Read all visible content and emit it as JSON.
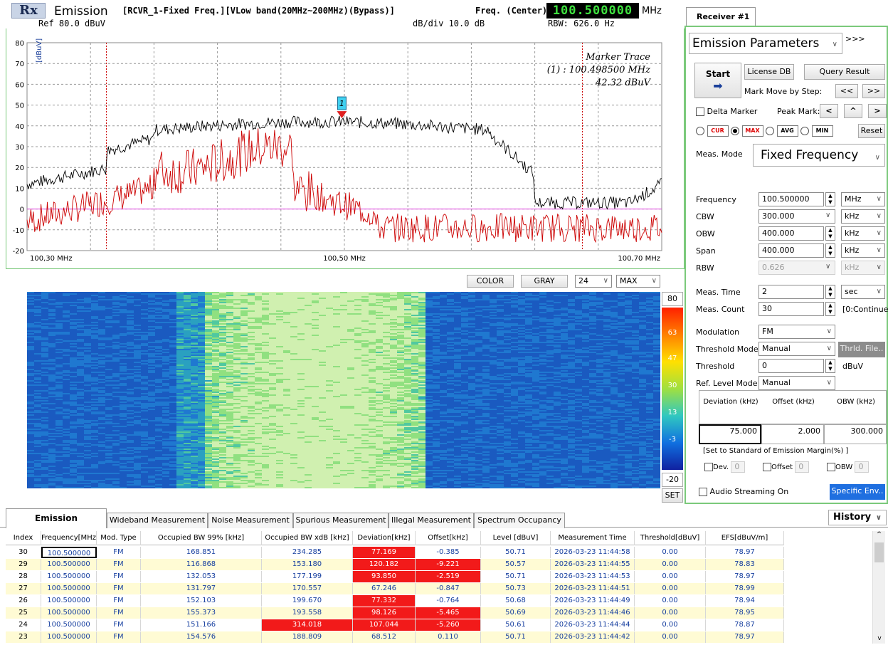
{
  "header": {
    "rx": "Rx",
    "mode": "Emission",
    "receiver_info": "[RCVR_1-Fixed Freq.][VLow band(20MHz~200MHz)(Bypass)]",
    "freq_center_label": "Freq. (Center)",
    "freq_center_value": "100.500000",
    "freq_unit": "MHz",
    "ref": "Ref 80.0 dBuV",
    "dbdiv": "dB/div 10.0 dB",
    "rbw": "RBW: 626.0 Hz"
  },
  "spectrum": {
    "ylabel": "[dBuV]",
    "yticks": [
      "80",
      "70",
      "60",
      "50",
      "40",
      "30",
      "20",
      "10",
      "0",
      "-10",
      "-20"
    ],
    "xticks": [
      "100,30 MHz",
      "100,50 MHz",
      "100,70 MHz"
    ],
    "marker_title": "Marker Trace",
    "marker_freq": "(1) : 100.498500 MHz",
    "marker_level": "42.32 dBuV",
    "marker_num": "1",
    "colors": {
      "max_trace": "#000000",
      "cur_trace": "#cc0000",
      "threshold": "#e040e0",
      "limit_lines": "#cc0000"
    }
  },
  "waterfall": {
    "color_btn": "COLOR",
    "gray_btn": "GRAY",
    "count": "24",
    "mode": "MAX",
    "scale": [
      "80",
      "63",
      "47",
      "30",
      "13",
      "-3",
      "-20"
    ],
    "set_btn": "SET"
  },
  "receiver": {
    "tab": "Receiver #1",
    "title": "Emission Parameters",
    "expand": ">>>",
    "start": "Start",
    "license_db": "License DB",
    "query_result": "Query Result",
    "mark_move": "Mark Move by Step:",
    "prev": "<<",
    "next": ">>",
    "delta_marker": "Delta Marker",
    "peak_mark": "Peak Mark:",
    "peak_left": "<",
    "peak_up": "^",
    "peak_right": ">",
    "cur": "CUR",
    "max": "MAX",
    "avg": "AVG",
    "min": "MIN",
    "reset": "Reset",
    "meas_mode_label": "Meas. Mode",
    "meas_mode": "Fixed Frequency",
    "fields": [
      {
        "label": "Frequency",
        "value": "100.500000",
        "unit": "MHz",
        "spin": true
      },
      {
        "label": "CBW",
        "value": "300.000",
        "unit": "kHz",
        "spin": false
      },
      {
        "label": "OBW",
        "value": "400.000",
        "unit": "kHz",
        "spin": true
      },
      {
        "label": "Span",
        "value": "400.000",
        "unit": "kHz",
        "spin": true
      },
      {
        "label": "RBW",
        "value": "0.626",
        "unit": "kHz",
        "spin": false
      }
    ],
    "meas_time_label": "Meas. Time",
    "meas_time": "2",
    "meas_time_unit": "sec",
    "meas_count_label": "Meas. Count",
    "meas_count": "30",
    "meas_count_note": "[0:Continue]",
    "modulation_label": "Modulation",
    "modulation": "FM",
    "threshold_mode_label": "Threshold Mode",
    "threshold_mode": "Manual",
    "thrld_file": "Thrld. File..",
    "threshold_label": "Threshold",
    "threshold": "0",
    "threshold_unit": "dBuV",
    "ref_level_label": "Ref. Level Mode",
    "ref_level": "Manual",
    "dev_head": "Deviation (kHz)",
    "off_head": "Offset (kHz)",
    "obw_head": "OBW (kHz)",
    "dev_val": "75.000",
    "off_val": "2.000",
    "obw_val": "300.000",
    "margin_label": "[Set to Standard of Emission Margin(%) ]",
    "dev_chk": "Dev.",
    "off_chk": "Offset",
    "obw_chk": "OBW",
    "dev_m": "0",
    "off_m": "0",
    "obw_m": "0",
    "audio": "Audio Streaming On",
    "specific": "Specific Env.."
  },
  "tabs": [
    "Emission Parameters",
    "Wideband Measurement",
    "Noise Measurement",
    "Spurious Measurement",
    "Illegal Measurement",
    "Spectrum Occupancy"
  ],
  "history": "History",
  "table": {
    "headers": [
      "Index",
      "Frequency[MHz]",
      "Mod. Type",
      "Occupied BW 99% [kHz]",
      "Occupied BW xdB [kHz]",
      "Deviation[kHz]",
      "Offset[kHz]",
      "Level [dBuV]",
      "Measurement Time",
      "Threshold[dBuV]",
      "EFS[dBuV/m]"
    ],
    "rows": [
      [
        "30",
        "100.500000",
        "FM",
        "168.851",
        "234.285",
        "77.169",
        "-0.385",
        "50.71",
        "2026-03-23 11:44:58",
        "0.00",
        "78.97"
      ],
      [
        "29",
        "100.500000",
        "FM",
        "116.868",
        "153.180",
        "120.182",
        "-9.221",
        "50.57",
        "2026-03-23 11:44:55",
        "0.00",
        "78.83"
      ],
      [
        "28",
        "100.500000",
        "FM",
        "132.053",
        "177.199",
        "93.850",
        "-2.519",
        "50.71",
        "2026-03-23 11:44:53",
        "0.00",
        "78.97"
      ],
      [
        "27",
        "100.500000",
        "FM",
        "131.797",
        "170.557",
        "67.246",
        "-0.847",
        "50.73",
        "2026-03-23 11:44:51",
        "0.00",
        "78.99"
      ],
      [
        "26",
        "100.500000",
        "FM",
        "152.103",
        "199.670",
        "77.332",
        "-0.764",
        "50.68",
        "2026-03-23 11:44:49",
        "0.00",
        "78.94"
      ],
      [
        "25",
        "100.500000",
        "FM",
        "155.373",
        "193.558",
        "98.126",
        "-5.465",
        "50.69",
        "2026-03-23 11:44:46",
        "0.00",
        "78.95"
      ],
      [
        "24",
        "100.500000",
        "FM",
        "151.166",
        "314.018",
        "107.044",
        "-5.260",
        "50.61",
        "2026-03-23 11:44:44",
        "0.00",
        "78.87"
      ],
      [
        "23",
        "100.500000",
        "FM",
        "154.576",
        "188.809",
        "68.512",
        "0.110",
        "50.71",
        "2026-03-23 11:44:42",
        "0.00",
        "78.97"
      ]
    ],
    "red_cells": [
      [
        0,
        5
      ],
      [
        1,
        5
      ],
      [
        1,
        6
      ],
      [
        2,
        5
      ],
      [
        2,
        6
      ],
      [
        4,
        5
      ],
      [
        5,
        5
      ],
      [
        5,
        6
      ],
      [
        6,
        4
      ],
      [
        6,
        5
      ],
      [
        6,
        6
      ]
    ]
  }
}
